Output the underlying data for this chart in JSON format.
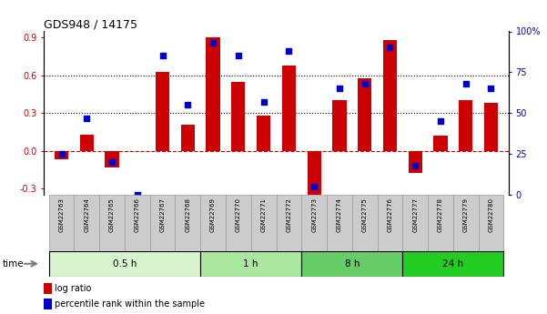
{
  "title": "GDS948 / 14175",
  "samples": [
    "GSM22763",
    "GSM22764",
    "GSM22765",
    "GSM22766",
    "GSM22767",
    "GSM22768",
    "GSM22769",
    "GSM22770",
    "GSM22771",
    "GSM22772",
    "GSM22773",
    "GSM22774",
    "GSM22775",
    "GSM22776",
    "GSM22777",
    "GSM22778",
    "GSM22779",
    "GSM22780"
  ],
  "log_ratio": [
    -0.07,
    0.13,
    -0.13,
    0.0,
    0.63,
    0.21,
    0.9,
    0.55,
    0.28,
    0.68,
    -0.37,
    0.4,
    0.58,
    0.88,
    -0.18,
    0.12,
    0.4,
    0.38
  ],
  "percentile_rank": [
    25,
    47,
    20,
    0,
    85,
    55,
    93,
    85,
    57,
    88,
    5,
    65,
    68,
    90,
    18,
    45,
    68,
    65
  ],
  "groups": [
    {
      "label": "0.5 h",
      "start": 0,
      "end": 5,
      "color": "#d8f5d0"
    },
    {
      "label": "1 h",
      "start": 6,
      "end": 9,
      "color": "#aae8a0"
    },
    {
      "label": "8 h",
      "start": 10,
      "end": 13,
      "color": "#66cc66"
    },
    {
      "label": "24 h",
      "start": 14,
      "end": 17,
      "color": "#22cc22"
    }
  ],
  "bar_color": "#cc0000",
  "dot_color": "#0000cc",
  "ylim_left": [
    -0.35,
    0.95
  ],
  "ylim_right": [
    0,
    100
  ],
  "yticks_left": [
    -0.3,
    0.0,
    0.3,
    0.6,
    0.9
  ],
  "yticks_right": [
    0,
    25,
    50,
    75,
    100
  ],
  "hline_y": [
    0.3,
    0.6
  ],
  "zero_line_color": "#cc0000",
  "dotted_line_color": "#000000",
  "legend_log_ratio": "log ratio",
  "legend_pct": "percentile rank within the sample",
  "sample_label_bg": "#cccccc",
  "sample_border_color": "#999999"
}
